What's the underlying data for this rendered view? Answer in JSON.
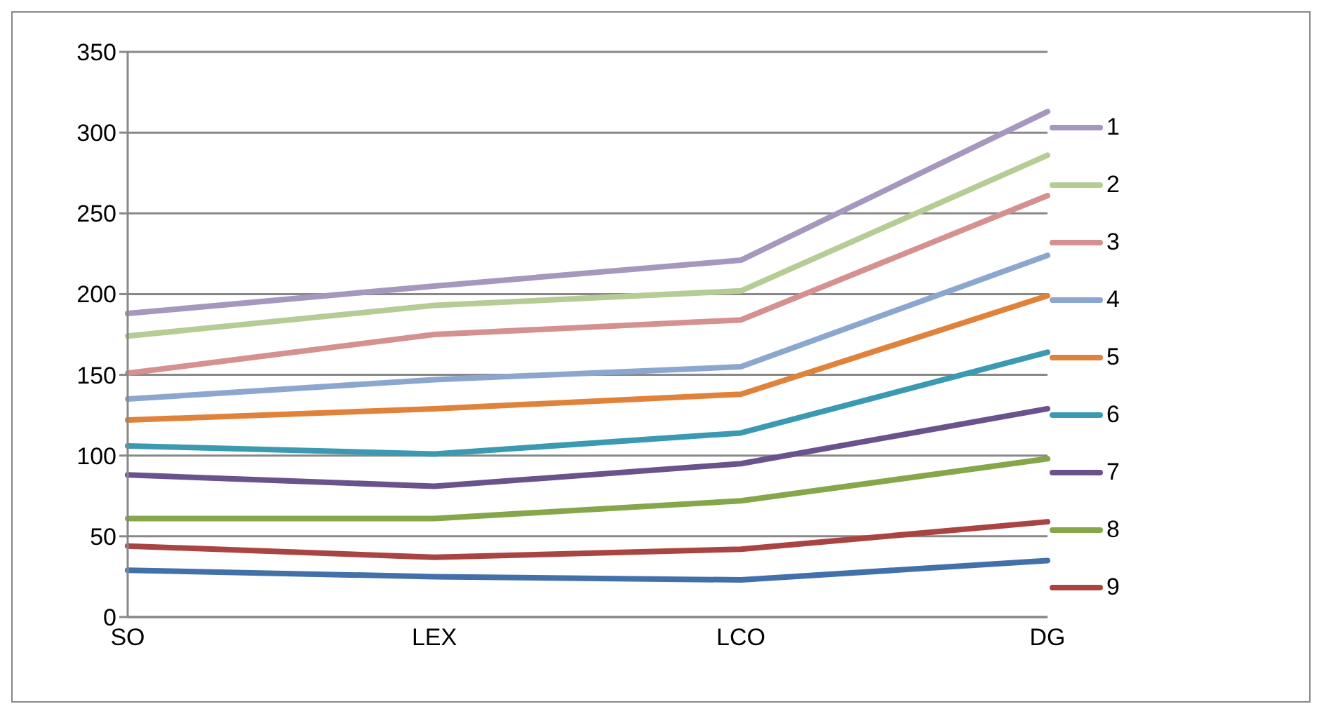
{
  "chart_data": {
    "type": "line",
    "categories": [
      "SO",
      "LEX",
      "LCO",
      "DG"
    ],
    "series": [
      {
        "name": "1",
        "color": "#a597bd",
        "values": [
          188,
          205,
          221,
          313
        ]
      },
      {
        "name": "2",
        "color": "#b5cc94",
        "values": [
          174,
          193,
          202,
          286
        ]
      },
      {
        "name": "3",
        "color": "#d49190",
        "values": [
          151,
          175,
          184,
          261
        ]
      },
      {
        "name": "4",
        "color": "#8ca7cf",
        "values": [
          135,
          147,
          155,
          224
        ]
      },
      {
        "name": "5",
        "color": "#e0823a",
        "values": [
          122,
          129,
          138,
          199
        ]
      },
      {
        "name": "6",
        "color": "#3b9ab2",
        "values": [
          106,
          101,
          114,
          164
        ]
      },
      {
        "name": "7",
        "color": "#6a528c",
        "values": [
          88,
          81,
          95,
          129
        ]
      },
      {
        "name": "8",
        "color": "#86a64a",
        "values": [
          61,
          61,
          72,
          98
        ]
      },
      {
        "name": "9",
        "color": "#a94442",
        "values": [
          44,
          37,
          42,
          59
        ]
      },
      {
        "color": "#4271aa",
        "values": [
          29,
          25,
          23,
          35
        ]
      }
    ],
    "ylim": [
      0,
      350
    ],
    "yticks": [
      0,
      50,
      100,
      150,
      200,
      250,
      300,
      350
    ],
    "grid": "y",
    "legend": "right",
    "marker": "none",
    "line_style": "solid"
  }
}
